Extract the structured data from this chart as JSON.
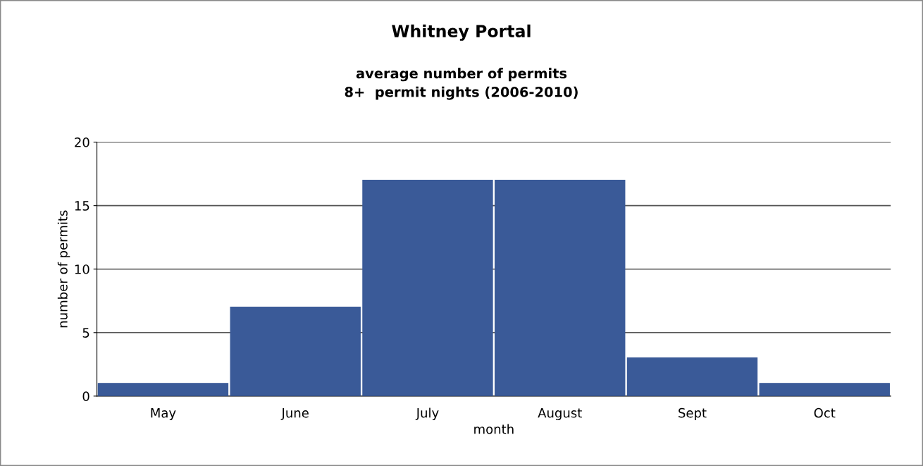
{
  "chart_data": {
    "type": "bar",
    "title": "Whitney Portal",
    "subtitle": "average number of permits\n8+  permit nights (2006-2010)",
    "xlabel": "month",
    "ylabel": "number of permits",
    "categories": [
      "May",
      "June",
      "July",
      "August",
      "Sept",
      "Oct"
    ],
    "values": [
      1,
      7,
      17,
      17,
      3,
      1
    ],
    "color": "#3a5a98",
    "ylim": [
      0,
      20
    ],
    "yticks": [
      0,
      5,
      10,
      15,
      20
    ],
    "grid": "y"
  }
}
